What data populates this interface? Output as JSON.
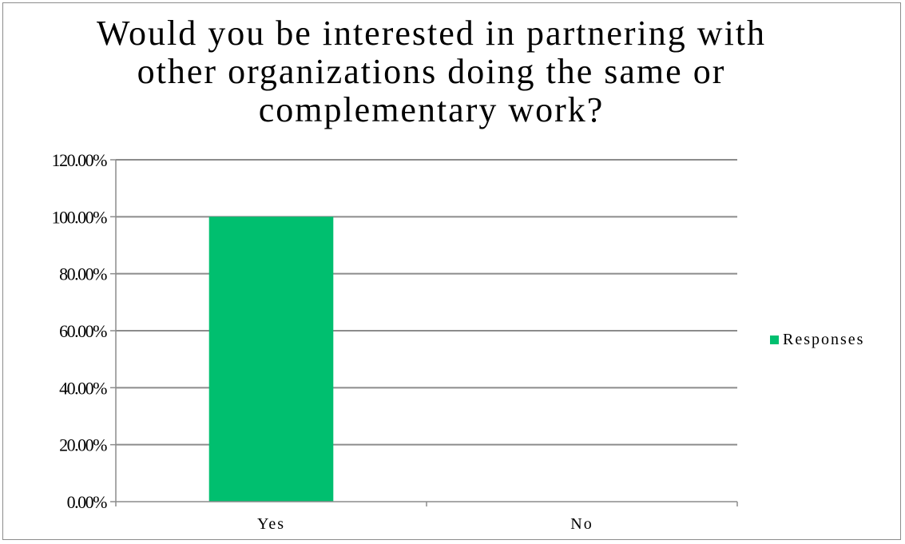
{
  "chart_data": {
    "type": "bar",
    "title": "Would you be interested in partnering with other organizations doing the same or complementary work?",
    "categories": [
      "Yes",
      "No"
    ],
    "series": [
      {
        "name": "Responses",
        "values": [
          100,
          0
        ],
        "color": "#00bf6f"
      }
    ],
    "ylim": [
      0,
      120
    ],
    "yticks": [
      0,
      20,
      40,
      60,
      80,
      100,
      120
    ],
    "ytick_labels": [
      "0.00%",
      "20.00%",
      "40.00%",
      "60.00%",
      "80.00%",
      "100.00%",
      "120.00%"
    ],
    "grid": true,
    "gridline_color": "#8c8c8c",
    "legend_position": "right"
  }
}
